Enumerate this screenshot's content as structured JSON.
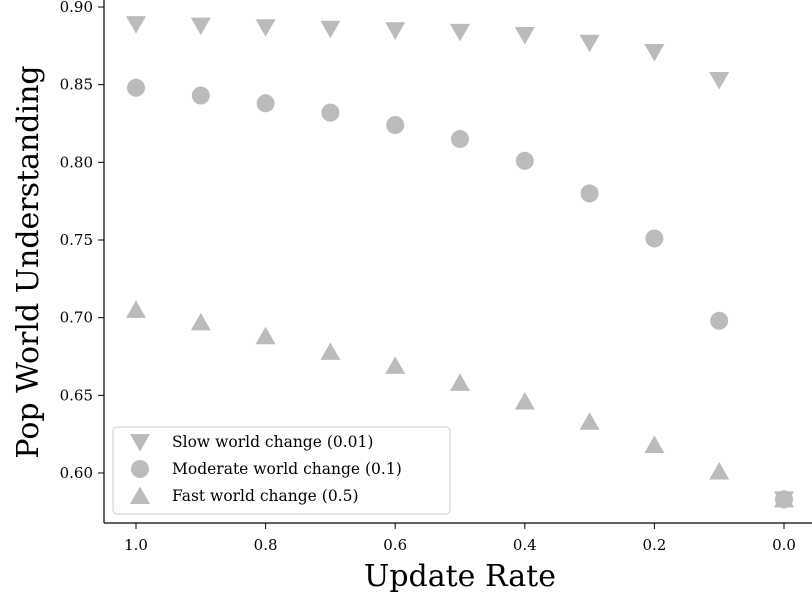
{
  "chart_data": {
    "type": "scatter",
    "xlabel": "Update Rate",
    "ylabel": "Pop World Understanding",
    "x_reversed": true,
    "xlim": [
      1.05,
      -0.01
    ],
    "ylim": [
      0.58,
      0.9
    ],
    "x_ticks": [
      1.0,
      0.8,
      0.6,
      0.4,
      0.2,
      0.0
    ],
    "x_tick_labels": [
      "1.0",
      "0.8",
      "0.6",
      "0.4",
      "0.2",
      "0.0"
    ],
    "y_ticks": [
      0.6,
      0.65,
      0.7,
      0.75,
      0.8,
      0.85,
      0.9
    ],
    "y_tick_labels": [
      "0.60",
      "0.65",
      "0.70",
      "0.75",
      "0.80",
      "0.85",
      "0.90"
    ],
    "grid": false,
    "legend_position": "lower-left",
    "marker_color": "#bbbbbb",
    "series": [
      {
        "name": "Slow world change (0.01)",
        "marker": "triangle-down",
        "x": [
          1.0,
          0.9,
          0.8,
          0.7,
          0.6,
          0.5,
          0.4,
          0.3,
          0.2,
          0.1,
          0.0
        ],
        "y": [
          0.889,
          0.888,
          0.887,
          0.886,
          0.885,
          0.884,
          0.882,
          0.877,
          0.871,
          0.853,
          0.583
        ]
      },
      {
        "name": "Moderate world change (0.1)",
        "marker": "circle",
        "x": [
          1.0,
          0.9,
          0.8,
          0.7,
          0.6,
          0.5,
          0.4,
          0.3,
          0.2,
          0.1,
          0.0
        ],
        "y": [
          0.848,
          0.843,
          0.838,
          0.832,
          0.824,
          0.815,
          0.801,
          0.78,
          0.751,
          0.698,
          0.583
        ]
      },
      {
        "name": "Fast world change (0.5)",
        "marker": "triangle-up",
        "x": [
          1.0,
          0.9,
          0.8,
          0.7,
          0.6,
          0.5,
          0.4,
          0.3,
          0.2,
          0.1,
          0.0
        ],
        "y": [
          0.705,
          0.697,
          0.688,
          0.678,
          0.669,
          0.658,
          0.646,
          0.633,
          0.618,
          0.601,
          0.583
        ]
      }
    ]
  }
}
